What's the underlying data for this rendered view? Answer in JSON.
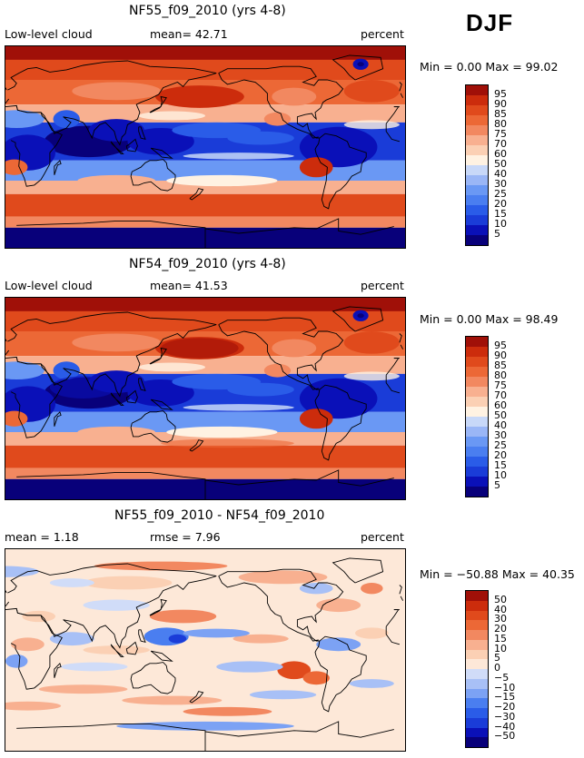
{
  "season": "DJF",
  "colors": {
    "levels16": [
      "#08007a",
      "#0a10b8",
      "#1a3cd8",
      "#2a5ce8",
      "#4a7ef0",
      "#6a98f4",
      "#9ab6f6",
      "#c8d8f8",
      "#fff2e2",
      "#fbd0b4",
      "#f8b090",
      "#f28860",
      "#ec6836",
      "#e04a1c",
      "#cc2c0c",
      "#a01008"
    ],
    "diff16": [
      "#08007a",
      "#0a10b8",
      "#1a3cd8",
      "#2a5ce8",
      "#4a7ef0",
      "#7ca2f4",
      "#a8c0f6",
      "#d0dcf8",
      "#fde8d8",
      "#fbd0b4",
      "#f8b090",
      "#f28860",
      "#ec6836",
      "#e04a1c",
      "#cc2c0c",
      "#a01008"
    ]
  },
  "chart_data": [
    {
      "type": "heatmap",
      "title": "NF55_f09_2010 (yrs 4-8)",
      "variable": "Low-level cloud",
      "stat_text": "mean=  42.71",
      "units": "percent",
      "minmax_text": "Min =    0.00 Max =   99.02",
      "min": 0.0,
      "max": 99.02,
      "mean": 42.71,
      "colorbar_levels": [
        "95",
        "90",
        "85",
        "80",
        "75",
        "70",
        "60",
        "50",
        "40",
        "30",
        "25",
        "20",
        "15",
        "10",
        "5"
      ]
    },
    {
      "type": "heatmap",
      "title": "NF54_f09_2010 (yrs 4-8)",
      "variable": "Low-level cloud",
      "stat_text": "mean=  41.53",
      "units": "percent",
      "minmax_text": "Min =    0.00 Max =   98.49",
      "min": 0.0,
      "max": 98.49,
      "mean": 41.53,
      "colorbar_levels": [
        "95",
        "90",
        "85",
        "80",
        "75",
        "70",
        "60",
        "50",
        "40",
        "30",
        "25",
        "20",
        "15",
        "10",
        "5"
      ]
    },
    {
      "type": "heatmap",
      "title": "NF55_f09_2010 - NF54_f09_2010",
      "stat_left": "mean =    1.18",
      "stat_mid": "rmse =    7.96",
      "units": "percent",
      "minmax_text": "Min = −50.88 Max =   40.35",
      "min": -50.88,
      "max": 40.35,
      "mean": 1.18,
      "rmse": 7.96,
      "colorbar_levels": [
        "50",
        "40",
        "30",
        "20",
        "15",
        "10",
        "5",
        "0",
        "−5",
        "−10",
        "−15",
        "−20",
        "−30",
        "−40",
        "−50"
      ]
    }
  ]
}
